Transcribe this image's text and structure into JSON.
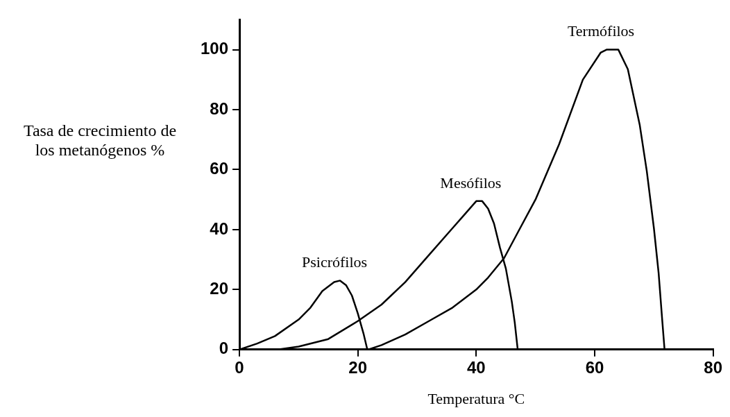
{
  "chart_data": {
    "type": "line",
    "xlabel": "Temperatura °C",
    "ylabel": "Tasa de crecimiento de los metanógenos %",
    "xlim": [
      0,
      80
    ],
    "xticks": [
      0,
      20,
      40,
      60,
      80
    ],
    "ylim": [
      0,
      110
    ],
    "yticks": [
      0,
      20,
      40,
      60,
      80,
      100
    ],
    "grid": false,
    "legend": false,
    "marker": "none",
    "line_style": "solid",
    "series": [
      {
        "name": "Psicrófilos",
        "color": "#000000",
        "x": [
          0,
          3,
          6,
          10,
          12,
          14,
          16,
          17,
          18,
          19,
          20,
          21,
          21.6
        ],
        "values": [
          0,
          2,
          4.5,
          10,
          14,
          19.5,
          22.5,
          23,
          21.5,
          18,
          12,
          5,
          0
        ]
      },
      {
        "name": "Mesófilos",
        "color": "#000000",
        "x": [
          6.5,
          10,
          15,
          20,
          24,
          28,
          32,
          36,
          38,
          40,
          41,
          42,
          43,
          44,
          45,
          46,
          46.5,
          47
        ],
        "values": [
          0,
          1,
          3.5,
          9.5,
          15,
          22.5,
          31.5,
          40.5,
          45,
          49.5,
          49.5,
          47,
          42,
          34,
          27,
          16,
          9,
          0
        ]
      },
      {
        "name": "Termófilos",
        "color": "#000000",
        "x": [
          21.8,
          24,
          28,
          32,
          36,
          40,
          42,
          44.7,
          47,
          50,
          54,
          58,
          61,
          62,
          64,
          65.6,
          67.6,
          68.8,
          70,
          70.8,
          71.4,
          71.8
        ],
        "values": [
          0,
          1.5,
          5,
          9.5,
          14,
          20,
          24,
          30.5,
          39,
          50,
          68.5,
          90,
          99,
          100,
          100,
          93.5,
          75,
          59.5,
          40.5,
          25.5,
          10,
          0
        ]
      }
    ]
  }
}
